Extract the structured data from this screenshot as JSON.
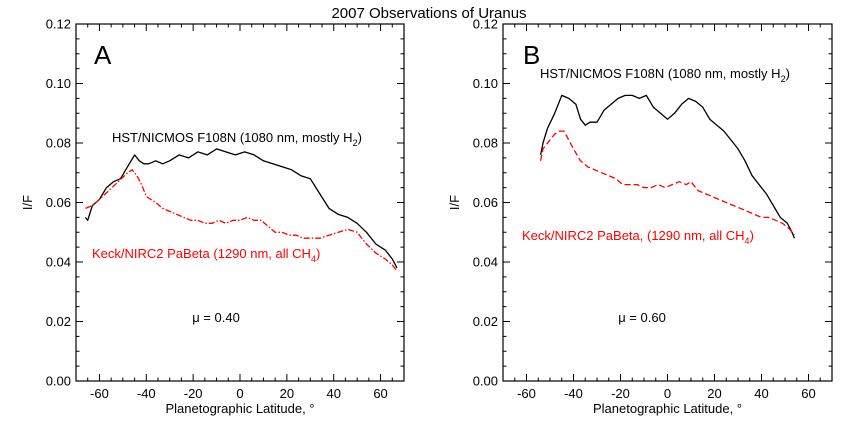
{
  "figure_title": "2007 Observations of Uranus",
  "colors": {
    "hst": "#000000",
    "keck": "#ff0000",
    "axes": "#000000",
    "background": "#ffffff"
  },
  "chart_data": [
    {
      "type": "line",
      "panel_label": "A",
      "title": "2007 Observations of Uranus",
      "xlabel": "Planetographic Latitude, °",
      "ylabel": "I/F",
      "xlim": [
        -70,
        70
      ],
      "ylim": [
        0,
        0.12
      ],
      "xticks": [
        -60,
        -40,
        -20,
        0,
        20,
        40,
        60
      ],
      "xtick_labels": [
        "-60",
        "-40",
        "-20",
        "0",
        "20",
        "40",
        "60"
      ],
      "yticks": [
        0,
        0.02,
        0.04,
        0.06,
        0.08,
        0.1,
        0.12
      ],
      "ytick_labels": [
        "0.00",
        "0.02",
        "0.04",
        "0.06",
        "0.08",
        "0.10",
        "0.12"
      ],
      "grid": false,
      "annotation": "μ = 0.40",
      "series": [
        {
          "name": "HST/NICMOS F108N (1080 nm, mostly H₂)",
          "color": "#000000",
          "dash": "solid",
          "x": [
            -66,
            -65,
            -63,
            -60,
            -57,
            -54,
            -51,
            -48,
            -45,
            -43,
            -41,
            -39,
            -36,
            -33,
            -30,
            -26,
            -22,
            -18,
            -14,
            -10,
            -6,
            -2,
            2,
            6,
            10,
            14,
            18,
            22,
            26,
            30,
            34,
            38,
            42,
            46,
            50,
            54,
            58,
            62,
            65,
            67
          ],
          "y": [
            0.055,
            0.054,
            0.059,
            0.061,
            0.065,
            0.067,
            0.068,
            0.072,
            0.076,
            0.074,
            0.073,
            0.073,
            0.074,
            0.073,
            0.074,
            0.076,
            0.075,
            0.077,
            0.076,
            0.078,
            0.077,
            0.076,
            0.077,
            0.076,
            0.074,
            0.073,
            0.072,
            0.071,
            0.069,
            0.068,
            0.063,
            0.058,
            0.056,
            0.055,
            0.053,
            0.05,
            0.046,
            0.044,
            0.041,
            0.038
          ]
        },
        {
          "name": "Keck/NIRC2 PaBeta (1290 nm, all CH₄)",
          "color": "#ff0000",
          "dash": "dashdot",
          "x": [
            -66,
            -63,
            -60,
            -56,
            -52,
            -48,
            -46,
            -44,
            -42,
            -40,
            -38,
            -36,
            -33,
            -30,
            -27,
            -24,
            -21,
            -18,
            -15,
            -12,
            -9,
            -6,
            -3,
            0,
            3,
            6,
            9,
            12,
            15,
            18,
            21,
            24,
            27,
            30,
            34,
            38,
            42,
            46,
            50,
            54,
            58,
            62,
            65,
            67
          ],
          "y": [
            0.058,
            0.059,
            0.061,
            0.064,
            0.067,
            0.07,
            0.071,
            0.069,
            0.066,
            0.062,
            0.061,
            0.06,
            0.058,
            0.057,
            0.056,
            0.055,
            0.054,
            0.054,
            0.053,
            0.053,
            0.054,
            0.053,
            0.054,
            0.054,
            0.055,
            0.054,
            0.054,
            0.052,
            0.05,
            0.05,
            0.049,
            0.049,
            0.048,
            0.048,
            0.048,
            0.049,
            0.05,
            0.051,
            0.05,
            0.046,
            0.043,
            0.041,
            0.039,
            0.037
          ]
        }
      ],
      "labels": {
        "hst_main": "HST/NICMOS F108N (1080 nm, mostly H",
        "hst_sub": "2",
        "hst_close": ")",
        "keck_main": "Keck/NIRC2 PaBeta (1290 nm, all CH",
        "keck_sub": "4",
        "keck_close": ")"
      }
    },
    {
      "type": "line",
      "panel_label": "B",
      "title": "2007 Observations of Uranus",
      "xlabel": "Planetographic Latitude, °",
      "ylabel": "I/F",
      "xlim": [
        -70,
        70
      ],
      "ylim": [
        0,
        0.12
      ],
      "xticks": [
        -60,
        -40,
        -20,
        0,
        20,
        40,
        60
      ],
      "xtick_labels": [
        "-60",
        "-40",
        "-20",
        "0",
        "20",
        "40",
        "60"
      ],
      "yticks": [
        0,
        0.02,
        0.04,
        0.06,
        0.08,
        0.1,
        0.12
      ],
      "ytick_labels": [
        "0.00",
        "0.02",
        "0.04",
        "0.06",
        "0.08",
        "0.10",
        "0.12"
      ],
      "grid": false,
      "annotation": "μ = 0.60",
      "series": [
        {
          "name": "HST/NICMOS F108N (1080 nm, mostly H₂)",
          "color": "#000000",
          "dash": "solid",
          "x": [
            -54,
            -53,
            -51,
            -48,
            -45,
            -42,
            -39,
            -37,
            -35,
            -33,
            -30,
            -27,
            -24,
            -21,
            -18,
            -15,
            -12,
            -9,
            -6,
            -3,
            0,
            3,
            6,
            9,
            12,
            15,
            18,
            21,
            24,
            27,
            30,
            33,
            36,
            39,
            42,
            45,
            48,
            51,
            53,
            54
          ],
          "y": [
            0.076,
            0.08,
            0.085,
            0.09,
            0.096,
            0.095,
            0.093,
            0.088,
            0.086,
            0.087,
            0.087,
            0.091,
            0.093,
            0.095,
            0.096,
            0.096,
            0.095,
            0.096,
            0.092,
            0.09,
            0.088,
            0.09,
            0.093,
            0.095,
            0.094,
            0.092,
            0.088,
            0.086,
            0.084,
            0.081,
            0.078,
            0.074,
            0.069,
            0.066,
            0.063,
            0.059,
            0.055,
            0.053,
            0.05,
            0.048
          ]
        },
        {
          "name": "Keck/NIRC2 PaBeta (1290 nm, all CH₄)",
          "color": "#ff0000",
          "dash": "dashed",
          "x": [
            -54,
            -53,
            -52,
            -50,
            -48,
            -46,
            -44,
            -42,
            -40,
            -37,
            -34,
            -31,
            -28,
            -25,
            -22,
            -19,
            -16,
            -13,
            -10,
            -7,
            -4,
            -1,
            2,
            5,
            8,
            10,
            13,
            16,
            19,
            22,
            25,
            28,
            31,
            34,
            37,
            40,
            43,
            46,
            49,
            52,
            54
          ],
          "y": [
            0.074,
            0.078,
            0.079,
            0.081,
            0.083,
            0.084,
            0.084,
            0.081,
            0.078,
            0.074,
            0.072,
            0.071,
            0.07,
            0.069,
            0.068,
            0.066,
            0.066,
            0.066,
            0.065,
            0.065,
            0.066,
            0.065,
            0.066,
            0.067,
            0.066,
            0.067,
            0.064,
            0.063,
            0.062,
            0.061,
            0.06,
            0.059,
            0.058,
            0.057,
            0.056,
            0.055,
            0.055,
            0.054,
            0.053,
            0.051,
            0.049
          ]
        }
      ],
      "labels": {
        "hst_main": "HST/NICMOS F108N (1080 nm, mostly H",
        "hst_sub": "2",
        "hst_close": ")",
        "keck_main": "Keck/NIRC2 PaBeta, (1290 nm, all CH",
        "keck_sub": "4",
        "keck_close": ")"
      }
    }
  ]
}
